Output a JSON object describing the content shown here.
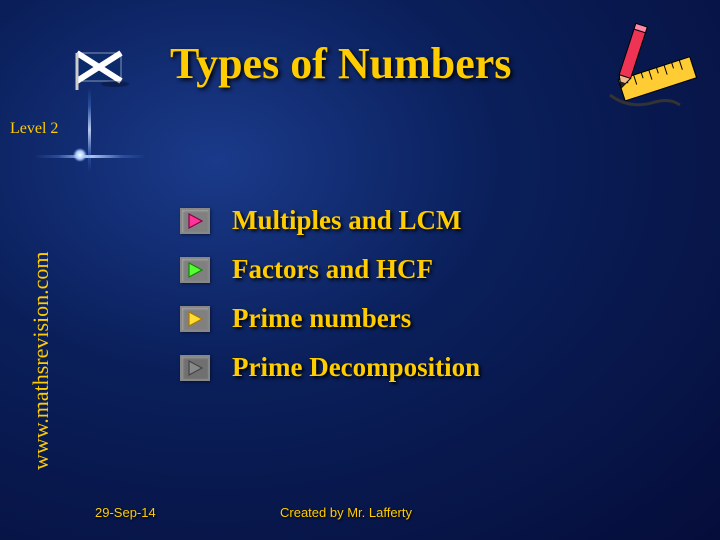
{
  "title": "Types of Numbers",
  "level": "Level 2",
  "website": "www.mathsrevision.com",
  "date": "29-Sep-14",
  "author": "Created by Mr. Lafferty",
  "colors": {
    "accent": "#ffcc00",
    "bg_center": "#1a3a8a",
    "bg_edge": "#050d3a"
  },
  "items": [
    {
      "label": "Multiples and LCM",
      "btn_bg": "#808080",
      "tri_fill": "#ff3399",
      "tri_stroke": "#880044"
    },
    {
      "label": "Factors and HCF",
      "btn_bg": "#808080",
      "tri_fill": "#55ff33",
      "tri_stroke": "#118800"
    },
    {
      "label": "Prime numbers",
      "btn_bg": "#808080",
      "tri_fill": "#ffdd33",
      "tri_stroke": "#aa7700"
    },
    {
      "label": "Prime Decomposition",
      "btn_bg": "#707070",
      "tri_fill": "#888888",
      "tri_stroke": "#444444"
    }
  ]
}
